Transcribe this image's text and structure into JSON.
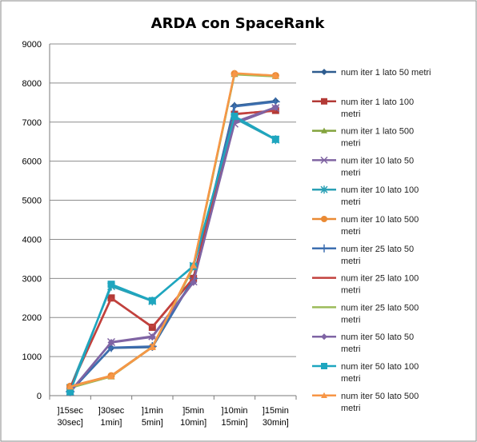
{
  "chart_data": {
    "type": "line",
    "title": "ARDA con SpaceRank",
    "xlabel": "",
    "ylabel": "",
    "ylim": [
      0,
      9000
    ],
    "yticks": [
      "0",
      "1000",
      "2000",
      "3000",
      "4000",
      "5000",
      "6000",
      "7000",
      "8000",
      "9000"
    ],
    "categories": [
      [
        "]15sec",
        "30sec]"
      ],
      [
        "]30sec",
        "1min]"
      ],
      [
        "]1min",
        "5min]"
      ],
      [
        "]5min",
        "10min]"
      ],
      [
        "]10min",
        "15min]"
      ],
      [
        "]15min",
        "30min]"
      ]
    ],
    "grid": "horizontal",
    "legend_position": "right",
    "series": [
      {
        "name": "num iter 1 lato 50 metri",
        "color": "#2e5c8f",
        "marker": "diamond",
        "values": [
          100,
          1220,
          1240,
          3000,
          7420,
          7540
        ]
      },
      {
        "name": "num iter 1 lato 100 metri",
        "color": "#b33a36",
        "marker": "square",
        "values": [
          200,
          2500,
          1750,
          3000,
          7200,
          7300
        ]
      },
      {
        "name": "num iter 1 lato 500 metri",
        "color": "#83a33d",
        "marker": "triangle",
        "values": [
          200,
          490,
          1240,
          3300,
          8230,
          8180
        ]
      },
      {
        "name": "num iter 10 lato 50 metri",
        "color": "#8064a2",
        "marker": "x",
        "values": [
          100,
          1370,
          1520,
          2920,
          6960,
          7360
        ]
      },
      {
        "name": "num iter 10 lato 100 metri",
        "color": "#2ba0b5",
        "marker": "star",
        "values": [
          200,
          2800,
          2420,
          3320,
          7100,
          6550
        ]
      },
      {
        "name": "num iter 10 lato 500 metri",
        "color": "#ea8a34",
        "marker": "circle",
        "values": [
          240,
          510,
          1250,
          3320,
          8240,
          8190
        ]
      },
      {
        "name": "num iter 25 lato 50 metri",
        "color": "#3d6fb0",
        "marker": "plus",
        "values": [
          100,
          1230,
          1260,
          3000,
          7400,
          7520
        ]
      },
      {
        "name": "num iter 25 lato 100 metri",
        "color": "#c2413d",
        "marker": "none",
        "values": [
          200,
          2490,
          1760,
          3010,
          7210,
          7290
        ]
      },
      {
        "name": "num iter 25 lato 500 metri",
        "color": "#9bbb59",
        "marker": "none",
        "values": [
          200,
          495,
          1245,
          3290,
          8220,
          8170
        ]
      },
      {
        "name": "num iter 50 lato 50 metri",
        "color": "#7f64a4",
        "marker": "diamond",
        "values": [
          100,
          1360,
          1500,
          2900,
          7000,
          7380
        ]
      },
      {
        "name": "num iter 50 lato 100 metri",
        "color": "#1ea6bf",
        "marker": "square",
        "values": [
          100,
          2850,
          2430,
          3310,
          7150,
          6560
        ]
      },
      {
        "name": "num iter 50 lato 500 metri",
        "color": "#f79646",
        "marker": "triangle",
        "values": [
          230,
          500,
          1240,
          3330,
          8250,
          8190
        ]
      }
    ]
  }
}
